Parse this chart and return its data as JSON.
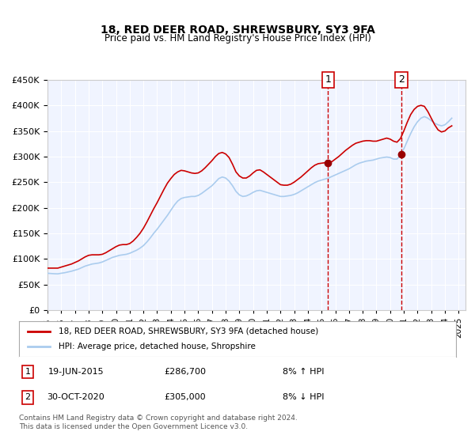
{
  "title": "18, RED DEER ROAD, SHREWSBURY, SY3 9FA",
  "subtitle": "Price paid vs. HM Land Registry's House Price Index (HPI)",
  "xlabel": "",
  "ylabel": "",
  "ylim": [
    0,
    450000
  ],
  "yticks": [
    0,
    50000,
    100000,
    150000,
    200000,
    250000,
    300000,
    350000,
    400000,
    450000
  ],
  "xlim_start": 1995.0,
  "xlim_end": 2025.5,
  "background_color": "#ffffff",
  "plot_bg_color": "#f0f4ff",
  "grid_color": "#ffffff",
  "red_line_color": "#cc0000",
  "blue_line_color": "#aaccee",
  "marker_color": "#990000",
  "vline_color": "#cc0000",
  "sale1_x": 2015.47,
  "sale1_y": 286700,
  "sale2_x": 2020.83,
  "sale2_y": 305000,
  "legend_label_red": "18, RED DEER ROAD, SHREWSBURY, SY3 9FA (detached house)",
  "legend_label_blue": "HPI: Average price, detached house, Shropshire",
  "annotation1_label": "1",
  "annotation2_label": "2",
  "table_row1": [
    "1",
    "19-JUN-2015",
    "£286,700",
    "8% ↑ HPI"
  ],
  "table_row2": [
    "2",
    "30-OCT-2020",
    "£305,000",
    "8% ↓ HPI"
  ],
  "footer1": "Contains HM Land Registry data © Crown copyright and database right 2024.",
  "footer2": "This data is licensed under the Open Government Licence v3.0.",
  "hpi_data": {
    "years": [
      1995.0,
      1995.25,
      1995.5,
      1995.75,
      1996.0,
      1996.25,
      1996.5,
      1996.75,
      1997.0,
      1997.25,
      1997.5,
      1997.75,
      1998.0,
      1998.25,
      1998.5,
      1998.75,
      1999.0,
      1999.25,
      1999.5,
      1999.75,
      2000.0,
      2000.25,
      2000.5,
      2000.75,
      2001.0,
      2001.25,
      2001.5,
      2001.75,
      2002.0,
      2002.25,
      2002.5,
      2002.75,
      2003.0,
      2003.25,
      2003.5,
      2003.75,
      2004.0,
      2004.25,
      2004.5,
      2004.75,
      2005.0,
      2005.25,
      2005.5,
      2005.75,
      2006.0,
      2006.25,
      2006.5,
      2006.75,
      2007.0,
      2007.25,
      2007.5,
      2007.75,
      2008.0,
      2008.25,
      2008.5,
      2008.75,
      2009.0,
      2009.25,
      2009.5,
      2009.75,
      2010.0,
      2010.25,
      2010.5,
      2010.75,
      2011.0,
      2011.25,
      2011.5,
      2011.75,
      2012.0,
      2012.25,
      2012.5,
      2012.75,
      2013.0,
      2013.25,
      2013.5,
      2013.75,
      2014.0,
      2014.25,
      2014.5,
      2014.75,
      2015.0,
      2015.25,
      2015.5,
      2015.75,
      2016.0,
      2016.25,
      2016.5,
      2016.75,
      2017.0,
      2017.25,
      2017.5,
      2017.75,
      2018.0,
      2018.25,
      2018.5,
      2018.75,
      2019.0,
      2019.25,
      2019.5,
      2019.75,
      2020.0,
      2020.25,
      2020.5,
      2020.75,
      2021.0,
      2021.25,
      2021.5,
      2021.75,
      2022.0,
      2022.25,
      2022.5,
      2022.75,
      2023.0,
      2023.25,
      2023.5,
      2023.75,
      2024.0,
      2024.25,
      2024.5
    ],
    "values": [
      72000,
      71500,
      71000,
      70800,
      72000,
      73000,
      74500,
      76000,
      78000,
      80000,
      83000,
      86000,
      88000,
      90000,
      91000,
      92000,
      94000,
      97000,
      100000,
      103000,
      105000,
      107000,
      108000,
      109000,
      111000,
      114000,
      117000,
      121000,
      126000,
      133000,
      141000,
      150000,
      158000,
      167000,
      176000,
      185000,
      195000,
      205000,
      213000,
      218000,
      220000,
      221000,
      222000,
      222000,
      224000,
      228000,
      233000,
      238000,
      243000,
      250000,
      257000,
      260000,
      258000,
      252000,
      243000,
      232000,
      225000,
      222000,
      223000,
      226000,
      230000,
      233000,
      234000,
      232000,
      230000,
      228000,
      226000,
      224000,
      222000,
      222000,
      223000,
      224000,
      226000,
      229000,
      233000,
      237000,
      241000,
      245000,
      249000,
      252000,
      254000,
      256000,
      258000,
      261000,
      264000,
      267000,
      270000,
      273000,
      276000,
      280000,
      284000,
      287000,
      289000,
      291000,
      292000,
      293000,
      295000,
      297000,
      298000,
      299000,
      298000,
      295000,
      295000,
      302000,
      315000,
      330000,
      345000,
      358000,
      368000,
      375000,
      378000,
      375000,
      370000,
      365000,
      362000,
      360000,
      362000,
      368000,
      375000
    ]
  },
  "red_data": {
    "years": [
      1995.0,
      1995.25,
      1995.5,
      1995.75,
      1996.0,
      1996.25,
      1996.5,
      1996.75,
      1997.0,
      1997.25,
      1997.5,
      1997.75,
      1998.0,
      1998.25,
      1998.5,
      1998.75,
      1999.0,
      1999.25,
      1999.5,
      1999.75,
      2000.0,
      2000.25,
      2000.5,
      2000.75,
      2001.0,
      2001.25,
      2001.5,
      2001.75,
      2002.0,
      2002.25,
      2002.5,
      2002.75,
      2003.0,
      2003.25,
      2003.5,
      2003.75,
      2004.0,
      2004.25,
      2004.5,
      2004.75,
      2005.0,
      2005.25,
      2005.5,
      2005.75,
      2006.0,
      2006.25,
      2006.5,
      2006.75,
      2007.0,
      2007.25,
      2007.5,
      2007.75,
      2008.0,
      2008.25,
      2008.5,
      2008.75,
      2009.0,
      2009.25,
      2009.5,
      2009.75,
      2010.0,
      2010.25,
      2010.5,
      2010.75,
      2011.0,
      2011.25,
      2011.5,
      2011.75,
      2012.0,
      2012.25,
      2012.5,
      2012.75,
      2013.0,
      2013.25,
      2013.5,
      2013.75,
      2014.0,
      2014.25,
      2014.5,
      2014.75,
      2015.0,
      2015.25,
      2015.5,
      2015.75,
      2016.0,
      2016.25,
      2016.5,
      2016.75,
      2017.0,
      2017.25,
      2017.5,
      2017.75,
      2018.0,
      2018.25,
      2018.5,
      2018.75,
      2019.0,
      2019.25,
      2019.5,
      2019.75,
      2020.0,
      2020.25,
      2020.5,
      2020.75,
      2021.0,
      2021.25,
      2021.5,
      2021.75,
      2022.0,
      2022.25,
      2022.5,
      2022.75,
      2023.0,
      2023.25,
      2023.5,
      2023.75,
      2024.0,
      2024.25,
      2024.5
    ],
    "values": [
      82000,
      82000,
      82000,
      82000,
      84000,
      86000,
      88000,
      90000,
      93000,
      96000,
      100000,
      104000,
      107000,
      108000,
      108000,
      108000,
      109000,
      112000,
      116000,
      120000,
      124000,
      127000,
      128000,
      128000,
      130000,
      135000,
      142000,
      150000,
      160000,
      172000,
      185000,
      198000,
      210000,
      223000,
      236000,
      248000,
      257000,
      265000,
      270000,
      273000,
      272000,
      270000,
      268000,
      267000,
      268000,
      272000,
      278000,
      285000,
      292000,
      300000,
      306000,
      308000,
      305000,
      298000,
      285000,
      270000,
      262000,
      258000,
      258000,
      262000,
      268000,
      273000,
      274000,
      270000,
      265000,
      260000,
      255000,
      250000,
      245000,
      244000,
      244000,
      246000,
      250000,
      255000,
      260000,
      266000,
      272000,
      278000,
      283000,
      286000,
      287000,
      288000,
      288000,
      290000,
      295000,
      300000,
      306000,
      312000,
      317000,
      322000,
      326000,
      328000,
      330000,
      331000,
      331000,
      330000,
      330000,
      332000,
      334000,
      336000,
      334000,
      330000,
      328000,
      335000,
      350000,
      367000,
      382000,
      392000,
      398000,
      400000,
      398000,
      388000,
      375000,
      362000,
      352000,
      348000,
      350000,
      356000,
      360000
    ]
  }
}
